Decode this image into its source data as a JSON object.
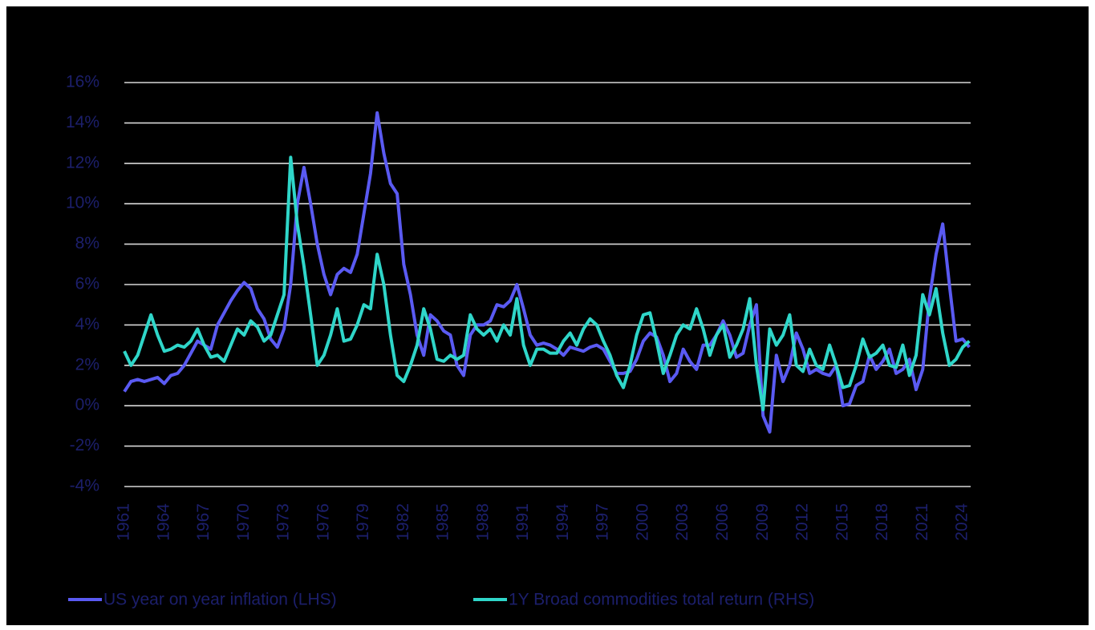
{
  "chart_data": {
    "type": "line",
    "x": [
      1961,
      1961.5,
      1962,
      1962.5,
      1963,
      1963.5,
      1964,
      1964.5,
      1965,
      1965.5,
      1966,
      1966.5,
      1967,
      1967.5,
      1968,
      1968.5,
      1969,
      1969.5,
      1970,
      1970.5,
      1971,
      1971.5,
      1972,
      1972.5,
      1973,
      1973.5,
      1974,
      1974.5,
      1975,
      1975.5,
      1976,
      1976.5,
      1977,
      1977.5,
      1978,
      1978.5,
      1979,
      1979.5,
      1980,
      1980.5,
      1981,
      1981.5,
      1982,
      1982.5,
      1983,
      1983.5,
      1984,
      1984.5,
      1985,
      1985.5,
      1986,
      1986.5,
      1987,
      1987.5,
      1988,
      1988.5,
      1989,
      1989.5,
      1990,
      1990.5,
      1991,
      1991.5,
      1992,
      1992.5,
      1993,
      1993.5,
      1994,
      1994.5,
      1995,
      1995.5,
      1996,
      1996.5,
      1997,
      1997.5,
      1998,
      1998.5,
      1999,
      1999.5,
      2000,
      2000.5,
      2001,
      2001.5,
      2002,
      2002.5,
      2003,
      2003.5,
      2004,
      2004.5,
      2005,
      2005.5,
      2006,
      2006.5,
      2007,
      2007.5,
      2008,
      2008.5,
      2009,
      2009.5,
      2010,
      2010.5,
      2011,
      2011.5,
      2012,
      2012.5,
      2013,
      2013.5,
      2014,
      2014.5,
      2015,
      2015.5,
      2016,
      2016.5,
      2017,
      2017.5,
      2018,
      2018.5,
      2019,
      2019.5,
      2020,
      2020.5,
      2021,
      2021.5,
      2022,
      2022.5,
      2023,
      2023.5,
      2024,
      2024.5
    ],
    "series": [
      {
        "name": "US year on year inflation (LHS)",
        "color": "#5a5af2",
        "values": [
          0.7,
          1.2,
          1.3,
          1.2,
          1.3,
          1.4,
          1.1,
          1.5,
          1.6,
          2.0,
          2.6,
          3.2,
          3.0,
          2.8,
          4.0,
          4.6,
          5.2,
          5.7,
          6.1,
          5.8,
          4.8,
          4.3,
          3.3,
          2.9,
          3.8,
          6.0,
          10.0,
          11.8,
          10.0,
          8.0,
          6.5,
          5.5,
          6.5,
          6.8,
          6.6,
          7.5,
          9.5,
          11.5,
          14.5,
          12.5,
          11.0,
          10.5,
          7.0,
          5.5,
          3.5,
          2.5,
          4.5,
          4.2,
          3.7,
          3.5,
          2.0,
          1.5,
          3.5,
          4.0,
          4.0,
          4.2,
          5.0,
          4.9,
          5.2,
          6.0,
          4.8,
          3.5,
          3.0,
          3.1,
          3.0,
          2.8,
          2.5,
          2.9,
          2.8,
          2.7,
          2.9,
          3.0,
          2.8,
          2.2,
          1.6,
          1.6,
          1.7,
          2.3,
          3.2,
          3.6,
          3.4,
          2.5,
          1.2,
          1.6,
          2.8,
          2.2,
          1.8,
          3.0,
          3.0,
          3.5,
          4.2,
          3.5,
          2.4,
          2.6,
          4.0,
          5.0,
          -0.5,
          -1.3,
          2.5,
          1.2,
          2.0,
          3.6,
          2.8,
          1.6,
          1.8,
          1.6,
          1.5,
          2.0,
          0.0,
          0.1,
          1.0,
          1.2,
          2.5,
          1.8,
          2.2,
          2.8,
          1.6,
          1.8,
          2.3,
          0.8,
          1.8,
          5.3,
          7.5,
          9.0,
          6.0,
          3.2,
          3.3,
          2.9
        ]
      },
      {
        "name": "1Y Broad commodities total return (RHS)",
        "color": "#2fd6c9",
        "values": [
          2.7,
          2.0,
          2.5,
          3.5,
          4.5,
          3.5,
          2.7,
          2.8,
          3.0,
          2.9,
          3.2,
          3.8,
          3.0,
          2.4,
          2.5,
          2.2,
          3.0,
          3.8,
          3.5,
          4.2,
          3.9,
          3.2,
          3.5,
          4.5,
          5.5,
          12.3,
          9.0,
          6.9,
          4.5,
          2.0,
          2.5,
          3.5,
          4.8,
          3.2,
          3.3,
          4.0,
          5.0,
          4.8,
          7.5,
          6.0,
          3.5,
          1.5,
          1.2,
          2.0,
          3.0,
          4.8,
          3.8,
          2.3,
          2.2,
          2.5,
          2.3,
          2.5,
          4.5,
          3.8,
          3.5,
          3.8,
          3.2,
          4.0,
          3.5,
          5.3,
          3.0,
          2.0,
          2.8,
          2.8,
          2.6,
          2.6,
          3.2,
          3.6,
          3.0,
          3.8,
          4.3,
          4.0,
          3.2,
          2.5,
          1.5,
          0.9,
          2.0,
          3.5,
          4.5,
          4.6,
          3.2,
          1.6,
          2.5,
          3.5,
          4.0,
          3.8,
          4.8,
          3.8,
          2.5,
          3.5,
          4.0,
          2.4,
          3.0,
          3.8,
          5.3,
          2.0,
          -0.2,
          3.8,
          3.0,
          3.5,
          4.5,
          2.0,
          1.7,
          2.8,
          2.0,
          1.8,
          3.0,
          2.0,
          0.9,
          1.0,
          2.0,
          3.3,
          2.4,
          2.6,
          3.0,
          2.0,
          1.9,
          3.0,
          1.5,
          2.5,
          5.5,
          4.5,
          5.8,
          3.6,
          2.0,
          2.3,
          2.9,
          3.2
        ]
      }
    ],
    "xlim": [
      1961,
      2024.6
    ],
    "xticks": [
      1961,
      1964,
      1967,
      1970,
      1973,
      1976,
      1979,
      1982,
      1985,
      1988,
      1991,
      1994,
      1997,
      2000,
      2003,
      2006,
      2009,
      2012,
      2015,
      2018,
      2021,
      2024
    ],
    "ylim": [
      -4,
      16
    ],
    "yticks": [
      {
        "value": -4,
        "label": "-4%"
      },
      {
        "value": -2,
        "label": "-2%"
      },
      {
        "value": 0,
        "label": "0%"
      },
      {
        "value": 2,
        "label": "2%"
      },
      {
        "value": 4,
        "label": "4%"
      },
      {
        "value": 6,
        "label": "6%"
      },
      {
        "value": 8,
        "label": "8%"
      },
      {
        "value": 10,
        "label": "10%"
      },
      {
        "value": 12,
        "label": "12%"
      },
      {
        "value": 14,
        "label": "14%"
      },
      {
        "value": 16,
        "label": "16%"
      }
    ],
    "grid": true
  }
}
